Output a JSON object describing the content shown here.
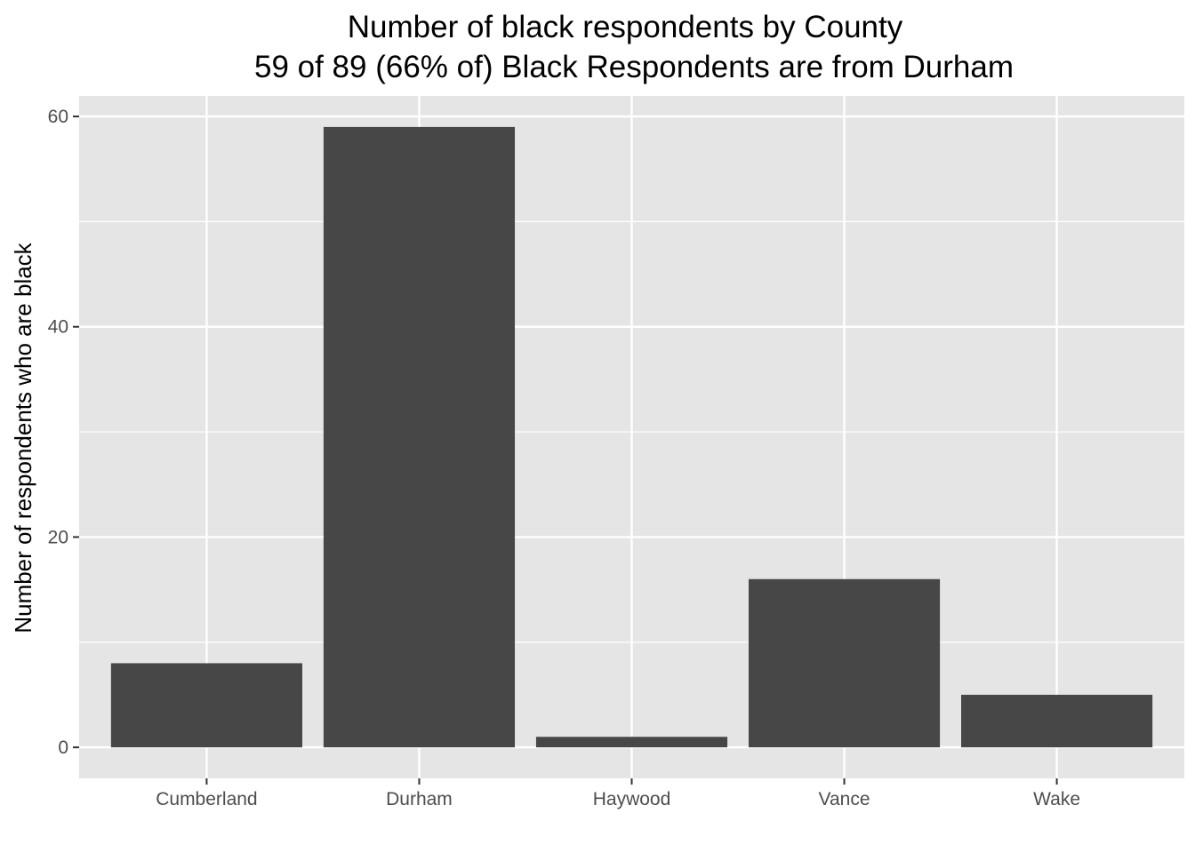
{
  "chart_data": {
    "type": "bar",
    "title": "Number of black respondents by County",
    "subtitle": "59 of 89 (66% of) Black Respondents are from Durham",
    "xlabel": "",
    "ylabel": "Number of respondents who are black",
    "categories": [
      "Cumberland",
      "Durham",
      "Haywood",
      "Vance",
      "Wake"
    ],
    "values": [
      8,
      59,
      1,
      16,
      5
    ],
    "ylim": [
      -2.95,
      61.95
    ],
    "yticks": [
      0,
      20,
      40,
      60
    ],
    "grid": true,
    "legend": "none",
    "colors": {
      "bar": "#474747",
      "panel": "#e5e5e5",
      "grid": "#ffffff",
      "tick_text": "#4d4d4d",
      "axis_ticks": "#333333"
    }
  }
}
